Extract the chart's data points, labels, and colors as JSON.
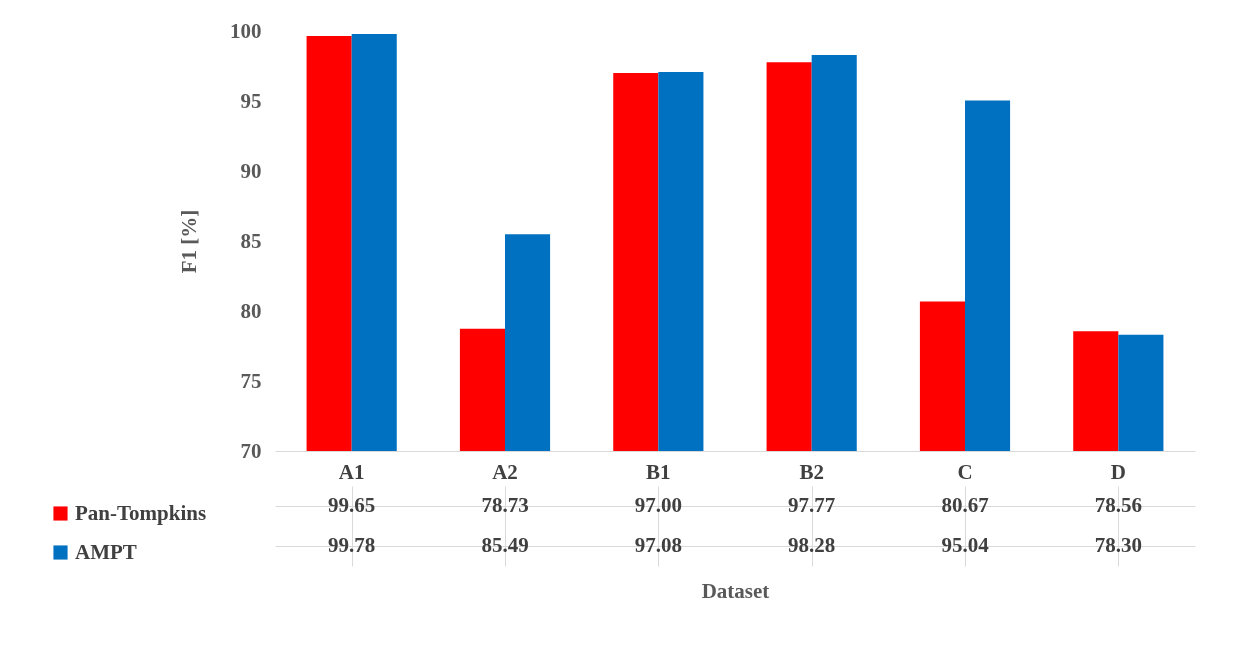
{
  "chart_data": {
    "type": "bar",
    "xlabel": "Dataset",
    "ylabel": "F1 [%]",
    "categories": [
      "A1",
      "A2",
      "B1",
      "B2",
      "C",
      "D"
    ],
    "series": [
      {
        "name": "Pan-Tompkins",
        "color": "#ff0000",
        "values": [
          99.65,
          78.73,
          97.0,
          97.77,
          80.67,
          78.56
        ],
        "value_labels": [
          "99.65",
          "78.73",
          "97.00",
          "97.77",
          "80.67",
          "78.56"
        ]
      },
      {
        "name": "AMPT",
        "color": "#0070c0",
        "values": [
          99.78,
          85.49,
          97.08,
          98.28,
          95.04,
          78.3
        ],
        "value_labels": [
          "99.78",
          "85.49",
          "97.08",
          "98.28",
          "95.04",
          "78.30"
        ]
      }
    ],
    "ylim": [
      70,
      100
    ],
    "yticks": [
      70,
      75,
      80,
      85,
      90,
      95,
      100
    ],
    "legend": "bottom left"
  }
}
